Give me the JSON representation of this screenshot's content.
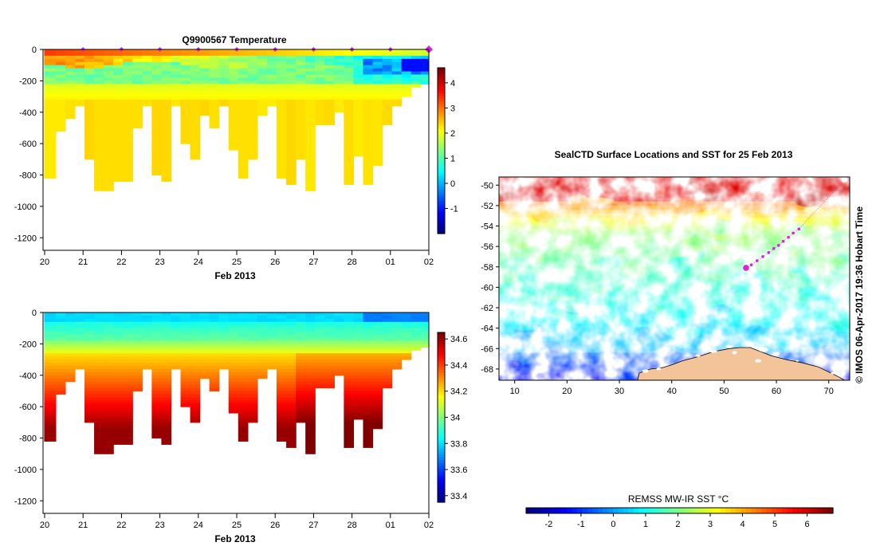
{
  "chart_data": [
    {
      "type": "heatmap",
      "title": "Q9900567  Temperature",
      "xlabel": "Feb 2013",
      "x_ticks": [
        "20",
        "21",
        "22",
        "23",
        "24",
        "25",
        "26",
        "27",
        "28",
        "01",
        "02"
      ],
      "y_ticks": [
        0,
        -200,
        -400,
        -600,
        -800,
        -1000,
        -1200
      ],
      "ylim": [
        -1280,
        0
      ],
      "colorbar_ticks": [
        4,
        3,
        2,
        1,
        0,
        -1
      ],
      "colorbar_range": [
        -2,
        4.6
      ],
      "profile_days": [
        0.05,
        0.35,
        0.6,
        0.85,
        1.1,
        1.35,
        1.6,
        1.85,
        2.1,
        2.35,
        2.6,
        2.85,
        3.1,
        3.35,
        3.6,
        3.85,
        4.1,
        4.35,
        4.6,
        4.85,
        5.1,
        5.35,
        5.6,
        5.85,
        6.1,
        6.35,
        6.6,
        6.85,
        7.1,
        7.35,
        7.6,
        7.85,
        8.1,
        8.35,
        8.6,
        8.85,
        9.1,
        9.35,
        9.6,
        9.85
      ],
      "profile_max_depth": [
        820,
        520,
        440,
        360,
        700,
        890,
        890,
        840,
        840,
        500,
        360,
        800,
        830,
        360,
        600,
        700,
        420,
        490,
        360,
        640,
        810,
        700,
        410,
        360,
        820,
        860,
        700,
        900,
        480,
        470,
        400,
        860,
        680,
        860,
        740,
        470,
        360,
        300,
        240,
        220
      ],
      "surface_location_markers": [
        "21",
        "22",
        "23",
        "24",
        "25",
        "26",
        "27",
        "28",
        "01",
        "02"
      ]
    },
    {
      "type": "heatmap",
      "title": "",
      "xlabel": "Feb 2013",
      "x_ticks": [
        "20",
        "21",
        "22",
        "23",
        "24",
        "25",
        "26",
        "27",
        "28",
        "01",
        "02"
      ],
      "y_ticks": [
        0,
        -200,
        -400,
        -600,
        -800,
        -1000,
        -1200
      ],
      "ylim": [
        -1280,
        0
      ],
      "colorbar_ticks": [
        34.6,
        34.4,
        34.2,
        34,
        33.8,
        33.6,
        33.4
      ],
      "colorbar_range": [
        33.35,
        34.65
      ],
      "profile_days": [
        0.05,
        0.35,
        0.6,
        0.85,
        1.1,
        1.35,
        1.6,
        1.85,
        2.1,
        2.35,
        2.6,
        2.85,
        3.1,
        3.35,
        3.6,
        3.85,
        4.1,
        4.35,
        4.6,
        4.85,
        5.1,
        5.35,
        5.6,
        5.85,
        6.1,
        6.35,
        6.6,
        6.85,
        7.1,
        7.35,
        7.6,
        7.85,
        8.1,
        8.35,
        8.6,
        8.85,
        9.1,
        9.35,
        9.6,
        9.85
      ],
      "profile_max_depth": [
        820,
        520,
        440,
        360,
        700,
        890,
        890,
        840,
        840,
        500,
        360,
        800,
        830,
        360,
        600,
        700,
        420,
        490,
        360,
        640,
        810,
        700,
        410,
        360,
        820,
        860,
        700,
        900,
        480,
        470,
        400,
        860,
        680,
        860,
        740,
        470,
        360,
        300,
        240,
        220
      ]
    },
    {
      "type": "heatmap",
      "title": "SealCTD Surface Locations and SST for 25 Feb 2013",
      "x_ticks": [
        10,
        20,
        30,
        40,
        50,
        60,
        70
      ],
      "y_ticks": [
        -50,
        -52,
        -54,
        -56,
        -58,
        -60,
        -62,
        -64,
        -66,
        -68
      ],
      "xlim": [
        7,
        74
      ],
      "ylim": [
        -69.1,
        -49.2
      ],
      "track": {
        "lon": [
          54.2,
          55.2,
          56.3,
          57.4,
          58.5,
          59.5,
          60.4,
          61.3,
          62.3,
          63.2,
          64.3
        ],
        "lat": [
          -58.1,
          -57.8,
          -57.4,
          -57.0,
          -56.6,
          -56.2,
          -55.9,
          -55.5,
          -55.1,
          -54.7,
          -54.3
        ]
      },
      "current_position": {
        "lon": 54.2,
        "lat": -58.1
      },
      "watermark": "© IMOS 06-Apr-2017 19:36 Hobart Time",
      "colorbar_label": "REMSS MW-IR SST °C",
      "colorbar_ticks": [
        -2,
        -1,
        0,
        1,
        2,
        3,
        4,
        5,
        6
      ],
      "colorbar_range": [
        -2.7,
        6.8
      ]
    }
  ],
  "colors": {
    "marker_magenta": "#e020e0",
    "land": "#f3c49a",
    "ice": "#ffffff"
  }
}
